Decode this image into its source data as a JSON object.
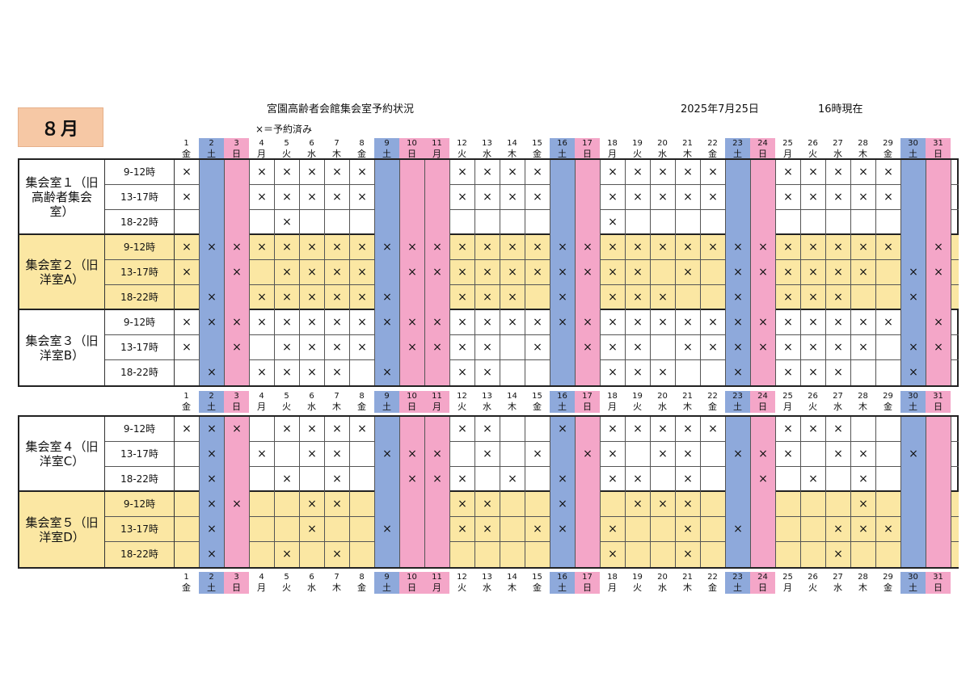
{
  "header": {
    "month": "８月",
    "title": "宮園高齢者会館集会室予約状況",
    "date": "2025年7月25日",
    "time": "16時現在",
    "legend": "×＝予約済み"
  },
  "days": [
    {
      "d": "1",
      "w": "金"
    },
    {
      "d": "2",
      "w": "土"
    },
    {
      "d": "3",
      "w": "日"
    },
    {
      "d": "4",
      "w": "月"
    },
    {
      "d": "5",
      "w": "火"
    },
    {
      "d": "6",
      "w": "水"
    },
    {
      "d": "7",
      "w": "木"
    },
    {
      "d": "8",
      "w": "金"
    },
    {
      "d": "9",
      "w": "土"
    },
    {
      "d": "10",
      "w": "日"
    },
    {
      "d": "11",
      "w": "月"
    },
    {
      "d": "12",
      "w": "火"
    },
    {
      "d": "13",
      "w": "水"
    },
    {
      "d": "14",
      "w": "木"
    },
    {
      "d": "15",
      "w": "金"
    },
    {
      "d": "16",
      "w": "土"
    },
    {
      "d": "17",
      "w": "日"
    },
    {
      "d": "18",
      "w": "月"
    },
    {
      "d": "19",
      "w": "火"
    },
    {
      "d": "20",
      "w": "水"
    },
    {
      "d": "21",
      "w": "木"
    },
    {
      "d": "22",
      "w": "金"
    },
    {
      "d": "23",
      "w": "土"
    },
    {
      "d": "24",
      "w": "日"
    },
    {
      "d": "25",
      "w": "月"
    },
    {
      "d": "26",
      "w": "火"
    },
    {
      "d": "27",
      "w": "水"
    },
    {
      "d": "28",
      "w": "木"
    },
    {
      "d": "29",
      "w": "金"
    },
    {
      "d": "30",
      "w": "土"
    },
    {
      "d": "31",
      "w": "日"
    }
  ],
  "holidays": [
    "11"
  ],
  "booked_mark": "×",
  "colors": {
    "saturday": "#8ea9db",
    "sunday_holiday": "#f4a6c8",
    "highlight_room": "#fbe7a3",
    "month_badge": "#f6c8a5"
  },
  "rooms": [
    {
      "name": "集会室１（旧高齢者集会室）",
      "highlight": false,
      "slots": [
        {
          "label": "9-12時",
          "booked": [
            1,
            4,
            5,
            6,
            7,
            8,
            12,
            13,
            14,
            15,
            18,
            19,
            20,
            21,
            22,
            25,
            26,
            27,
            28,
            29
          ]
        },
        {
          "label": "13-17時",
          "booked": [
            1,
            4,
            5,
            6,
            7,
            8,
            12,
            13,
            14,
            15,
            18,
            19,
            20,
            21,
            22,
            25,
            26,
            27,
            28,
            29
          ]
        },
        {
          "label": "18-22時",
          "booked": [
            5,
            18
          ]
        }
      ]
    },
    {
      "name": "集会室２（旧洋室A）",
      "highlight": true,
      "slots": [
        {
          "label": "9-12時",
          "booked": [
            1,
            2,
            3,
            4,
            5,
            6,
            7,
            8,
            9,
            10,
            11,
            12,
            13,
            14,
            15,
            16,
            17,
            18,
            19,
            20,
            21,
            22,
            23,
            24,
            25,
            26,
            27,
            28,
            29,
            31
          ]
        },
        {
          "label": "13-17時",
          "booked": [
            1,
            3,
            5,
            6,
            7,
            8,
            10,
            11,
            12,
            13,
            14,
            15,
            16,
            17,
            18,
            19,
            21,
            23,
            24,
            25,
            26,
            27,
            28,
            30,
            31
          ]
        },
        {
          "label": "18-22時",
          "booked": [
            2,
            4,
            5,
            6,
            7,
            8,
            9,
            12,
            13,
            14,
            16,
            18,
            19,
            20,
            23,
            25,
            26,
            27,
            30
          ]
        }
      ]
    },
    {
      "name": "集会室３（旧洋室B）",
      "highlight": false,
      "slots": [
        {
          "label": "9-12時",
          "booked": [
            1,
            2,
            3,
            4,
            5,
            6,
            7,
            8,
            9,
            10,
            11,
            12,
            13,
            14,
            15,
            16,
            17,
            18,
            19,
            20,
            21,
            22,
            23,
            24,
            25,
            26,
            27,
            28,
            29,
            31
          ]
        },
        {
          "label": "13-17時",
          "booked": [
            1,
            3,
            5,
            6,
            7,
            8,
            10,
            11,
            12,
            13,
            15,
            17,
            18,
            19,
            21,
            22,
            23,
            24,
            25,
            26,
            27,
            28,
            30,
            31
          ]
        },
        {
          "label": "18-22時",
          "booked": [
            2,
            4,
            5,
            6,
            7,
            9,
            12,
            13,
            18,
            19,
            20,
            23,
            25,
            26,
            27,
            30
          ]
        }
      ]
    },
    {
      "name": "集会室４（旧洋室C）",
      "highlight": false,
      "slots": [
        {
          "label": "9-12時",
          "booked": [
            1,
            2,
            3,
            5,
            6,
            7,
            8,
            12,
            13,
            16,
            18,
            19,
            20,
            21,
            22,
            25,
            26,
            27
          ]
        },
        {
          "label": "13-17時",
          "booked": [
            2,
            4,
            6,
            7,
            9,
            10,
            11,
            13,
            15,
            17,
            18,
            20,
            21,
            23,
            24,
            25,
            27,
            28,
            30
          ]
        },
        {
          "label": "18-22時",
          "booked": [
            2,
            5,
            7,
            10,
            11,
            12,
            14,
            16,
            18,
            19,
            21,
            24,
            26,
            28
          ]
        }
      ]
    },
    {
      "name": "集会室５（旧洋室D）",
      "highlight": true,
      "slots": [
        {
          "label": "9-12時",
          "booked": [
            2,
            3,
            6,
            7,
            12,
            13,
            16,
            19,
            20,
            21,
            28
          ]
        },
        {
          "label": "13-17時",
          "booked": [
            2,
            6,
            9,
            12,
            13,
            15,
            16,
            18,
            21,
            23,
            27,
            28,
            29
          ]
        },
        {
          "label": "18-22時",
          "booked": [
            2,
            5,
            7,
            18,
            21,
            27
          ]
        }
      ]
    }
  ]
}
